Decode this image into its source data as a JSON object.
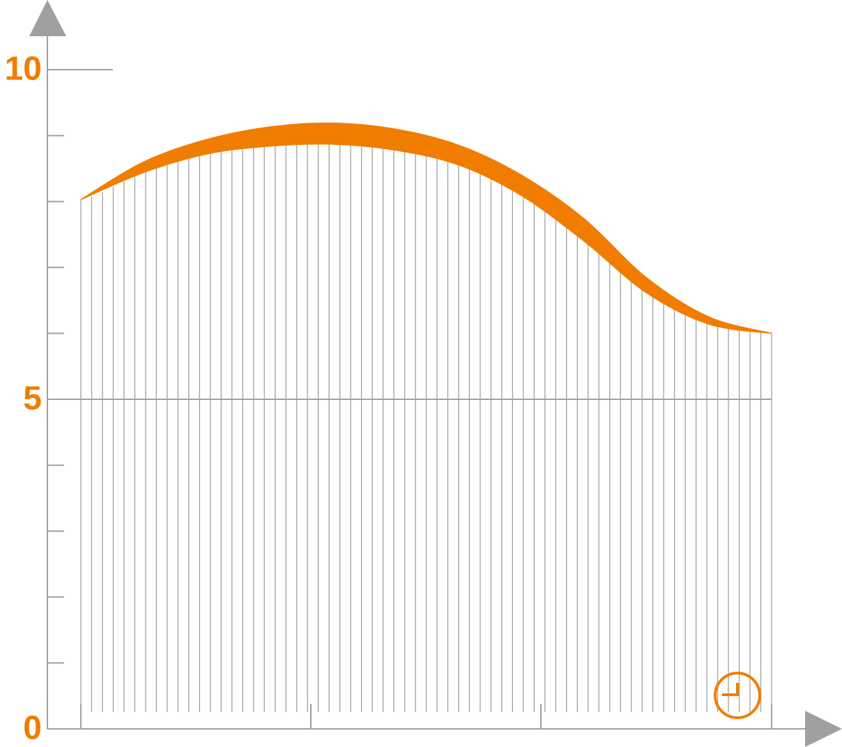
{
  "chart_data": {
    "type": "band",
    "ylim": [
      0,
      10
    ],
    "yticks": [
      0,
      5,
      10
    ],
    "minor_yticks": [
      1,
      2,
      3,
      4,
      6,
      7,
      8,
      9
    ],
    "label_color": "#f07d00",
    "axis_color": "#a0a0a0",
    "series": [
      {
        "color": "#f07d00",
        "values": [
          8.03,
          8.6,
          8.94,
          9.13,
          9.19,
          9.1,
          8.86,
          8.41,
          7.75,
          6.85,
          6.25,
          6.0
        ]
      },
      {
        "color": "#f07d00",
        "values": [
          8.03,
          8.44,
          8.72,
          8.84,
          8.87,
          8.78,
          8.56,
          8.1,
          7.41,
          6.62,
          6.14,
          6.0
        ]
      }
    ]
  }
}
